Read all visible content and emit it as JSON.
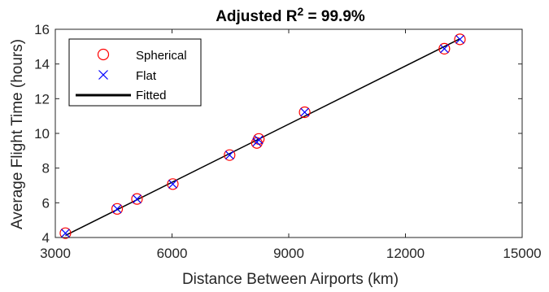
{
  "chart_data": {
    "type": "scatter",
    "title_main": "Adjusted R",
    "title_sup": "2",
    "title_rest": " = 99.9%",
    "xlabel": "Distance Between Airports (km)",
    "ylabel": "Average Flight Time (hours)",
    "xlim": [
      3000,
      15000
    ],
    "ylim": [
      4,
      16
    ],
    "xticks": [
      3000,
      6000,
      9000,
      12000,
      15000
    ],
    "yticks": [
      4,
      6,
      8,
      10,
      12,
      14,
      16
    ],
    "grid": false,
    "legend_position": "top-left",
    "series": [
      {
        "name": "Spherical",
        "marker": "circle",
        "color": "#ff0000",
        "points": [
          [
            3260,
            4.25
          ],
          [
            4590,
            5.65
          ],
          [
            5100,
            6.22
          ],
          [
            6020,
            7.08
          ],
          [
            7480,
            8.75
          ],
          [
            8180,
            9.45
          ],
          [
            8230,
            9.68
          ],
          [
            9410,
            11.22
          ],
          [
            13000,
            14.88
          ],
          [
            13400,
            15.42
          ]
        ]
      },
      {
        "name": "Flat",
        "marker": "x",
        "color": "#0000ff",
        "points": [
          [
            3260,
            4.25
          ],
          [
            4590,
            5.65
          ],
          [
            5100,
            6.22
          ],
          [
            6020,
            7.08
          ],
          [
            7480,
            8.75
          ],
          [
            8180,
            9.5
          ],
          [
            8230,
            9.63
          ],
          [
            9410,
            11.22
          ],
          [
            13000,
            14.88
          ],
          [
            13400,
            15.42
          ]
        ]
      },
      {
        "name": "Fitted",
        "type": "line",
        "color": "#000000",
        "points": [
          [
            3260,
            4.12
          ],
          [
            13400,
            15.45
          ]
        ]
      }
    ]
  }
}
